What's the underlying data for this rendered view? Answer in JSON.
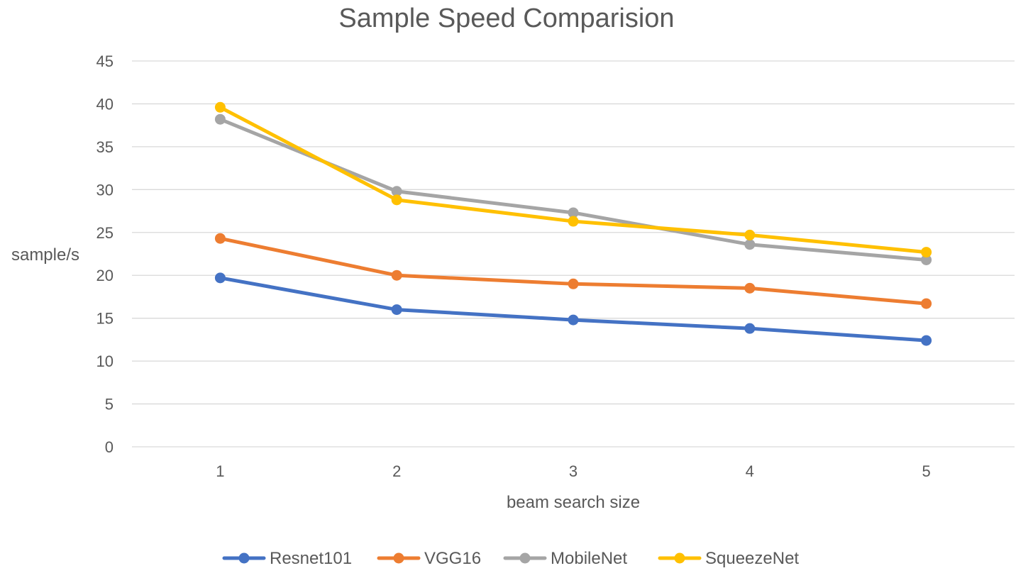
{
  "chart_data": {
    "type": "line",
    "title": "Sample Speed Comparision",
    "xlabel": "beam search size",
    "ylabel": "sample/s",
    "categories": [
      "1",
      "2",
      "3",
      "4",
      "5"
    ],
    "ylim": [
      0,
      45
    ],
    "yticks": [
      0,
      5,
      10,
      15,
      20,
      25,
      30,
      35,
      40,
      45
    ],
    "grid": true,
    "legend_position": "bottom",
    "series": [
      {
        "name": "Resnet101",
        "color": "#4472C4",
        "values": [
          19.7,
          16.0,
          14.8,
          13.8,
          12.4
        ]
      },
      {
        "name": "VGG16",
        "color": "#ED7D31",
        "values": [
          24.3,
          20.0,
          19.0,
          18.5,
          16.7
        ]
      },
      {
        "name": "MobileNet",
        "color": "#A5A5A5",
        "values": [
          38.2,
          29.8,
          27.3,
          23.6,
          21.8
        ]
      },
      {
        "name": "SqueezeNet",
        "color": "#FFC000",
        "values": [
          39.6,
          28.8,
          26.3,
          24.7,
          22.7
        ]
      }
    ]
  }
}
